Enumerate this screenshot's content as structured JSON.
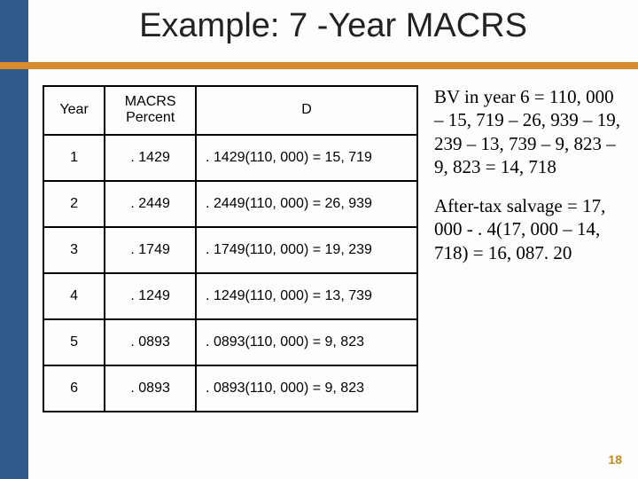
{
  "title": "Example: 7 -Year MACRS",
  "page_number": "18",
  "colors": {
    "left_bar": "#2f5a8a",
    "underline": "#d98a2b",
    "background": "#fdfdfb",
    "page_num": "#c08a1e"
  },
  "table": {
    "headers": {
      "year": "Year",
      "percent_line1": "MACRS",
      "percent_line2": "Percent",
      "d": "D"
    },
    "rows": [
      {
        "year": "1",
        "pct": ". 1429",
        "d": ". 1429(110, 000) = 15, 719"
      },
      {
        "year": "2",
        "pct": ". 2449",
        "d": ". 2449(110, 000) = 26, 939"
      },
      {
        "year": "3",
        "pct": ". 1749",
        "d": ". 1749(110, 000) = 19, 239"
      },
      {
        "year": "4",
        "pct": ". 1249",
        "d": ". 1249(110, 000) = 13, 739"
      },
      {
        "year": "5",
        "pct": ". 0893",
        "d": ". 0893(110, 000) = 9, 823"
      },
      {
        "year": "6",
        "pct": ". 0893",
        "d": ". 0893(110, 000) = 9, 823"
      }
    ]
  },
  "side": {
    "bv_text": "BV in year 6 = 110, 000 – 15, 719 – 26, 939 – 19, 239 – 13, 739 – 9, 823 – 9, 823 = 14, 718",
    "salvage_text": "After-tax salvage = 17, 000 - . 4(17, 000 – 14, 718) = 16, 087. 20"
  }
}
